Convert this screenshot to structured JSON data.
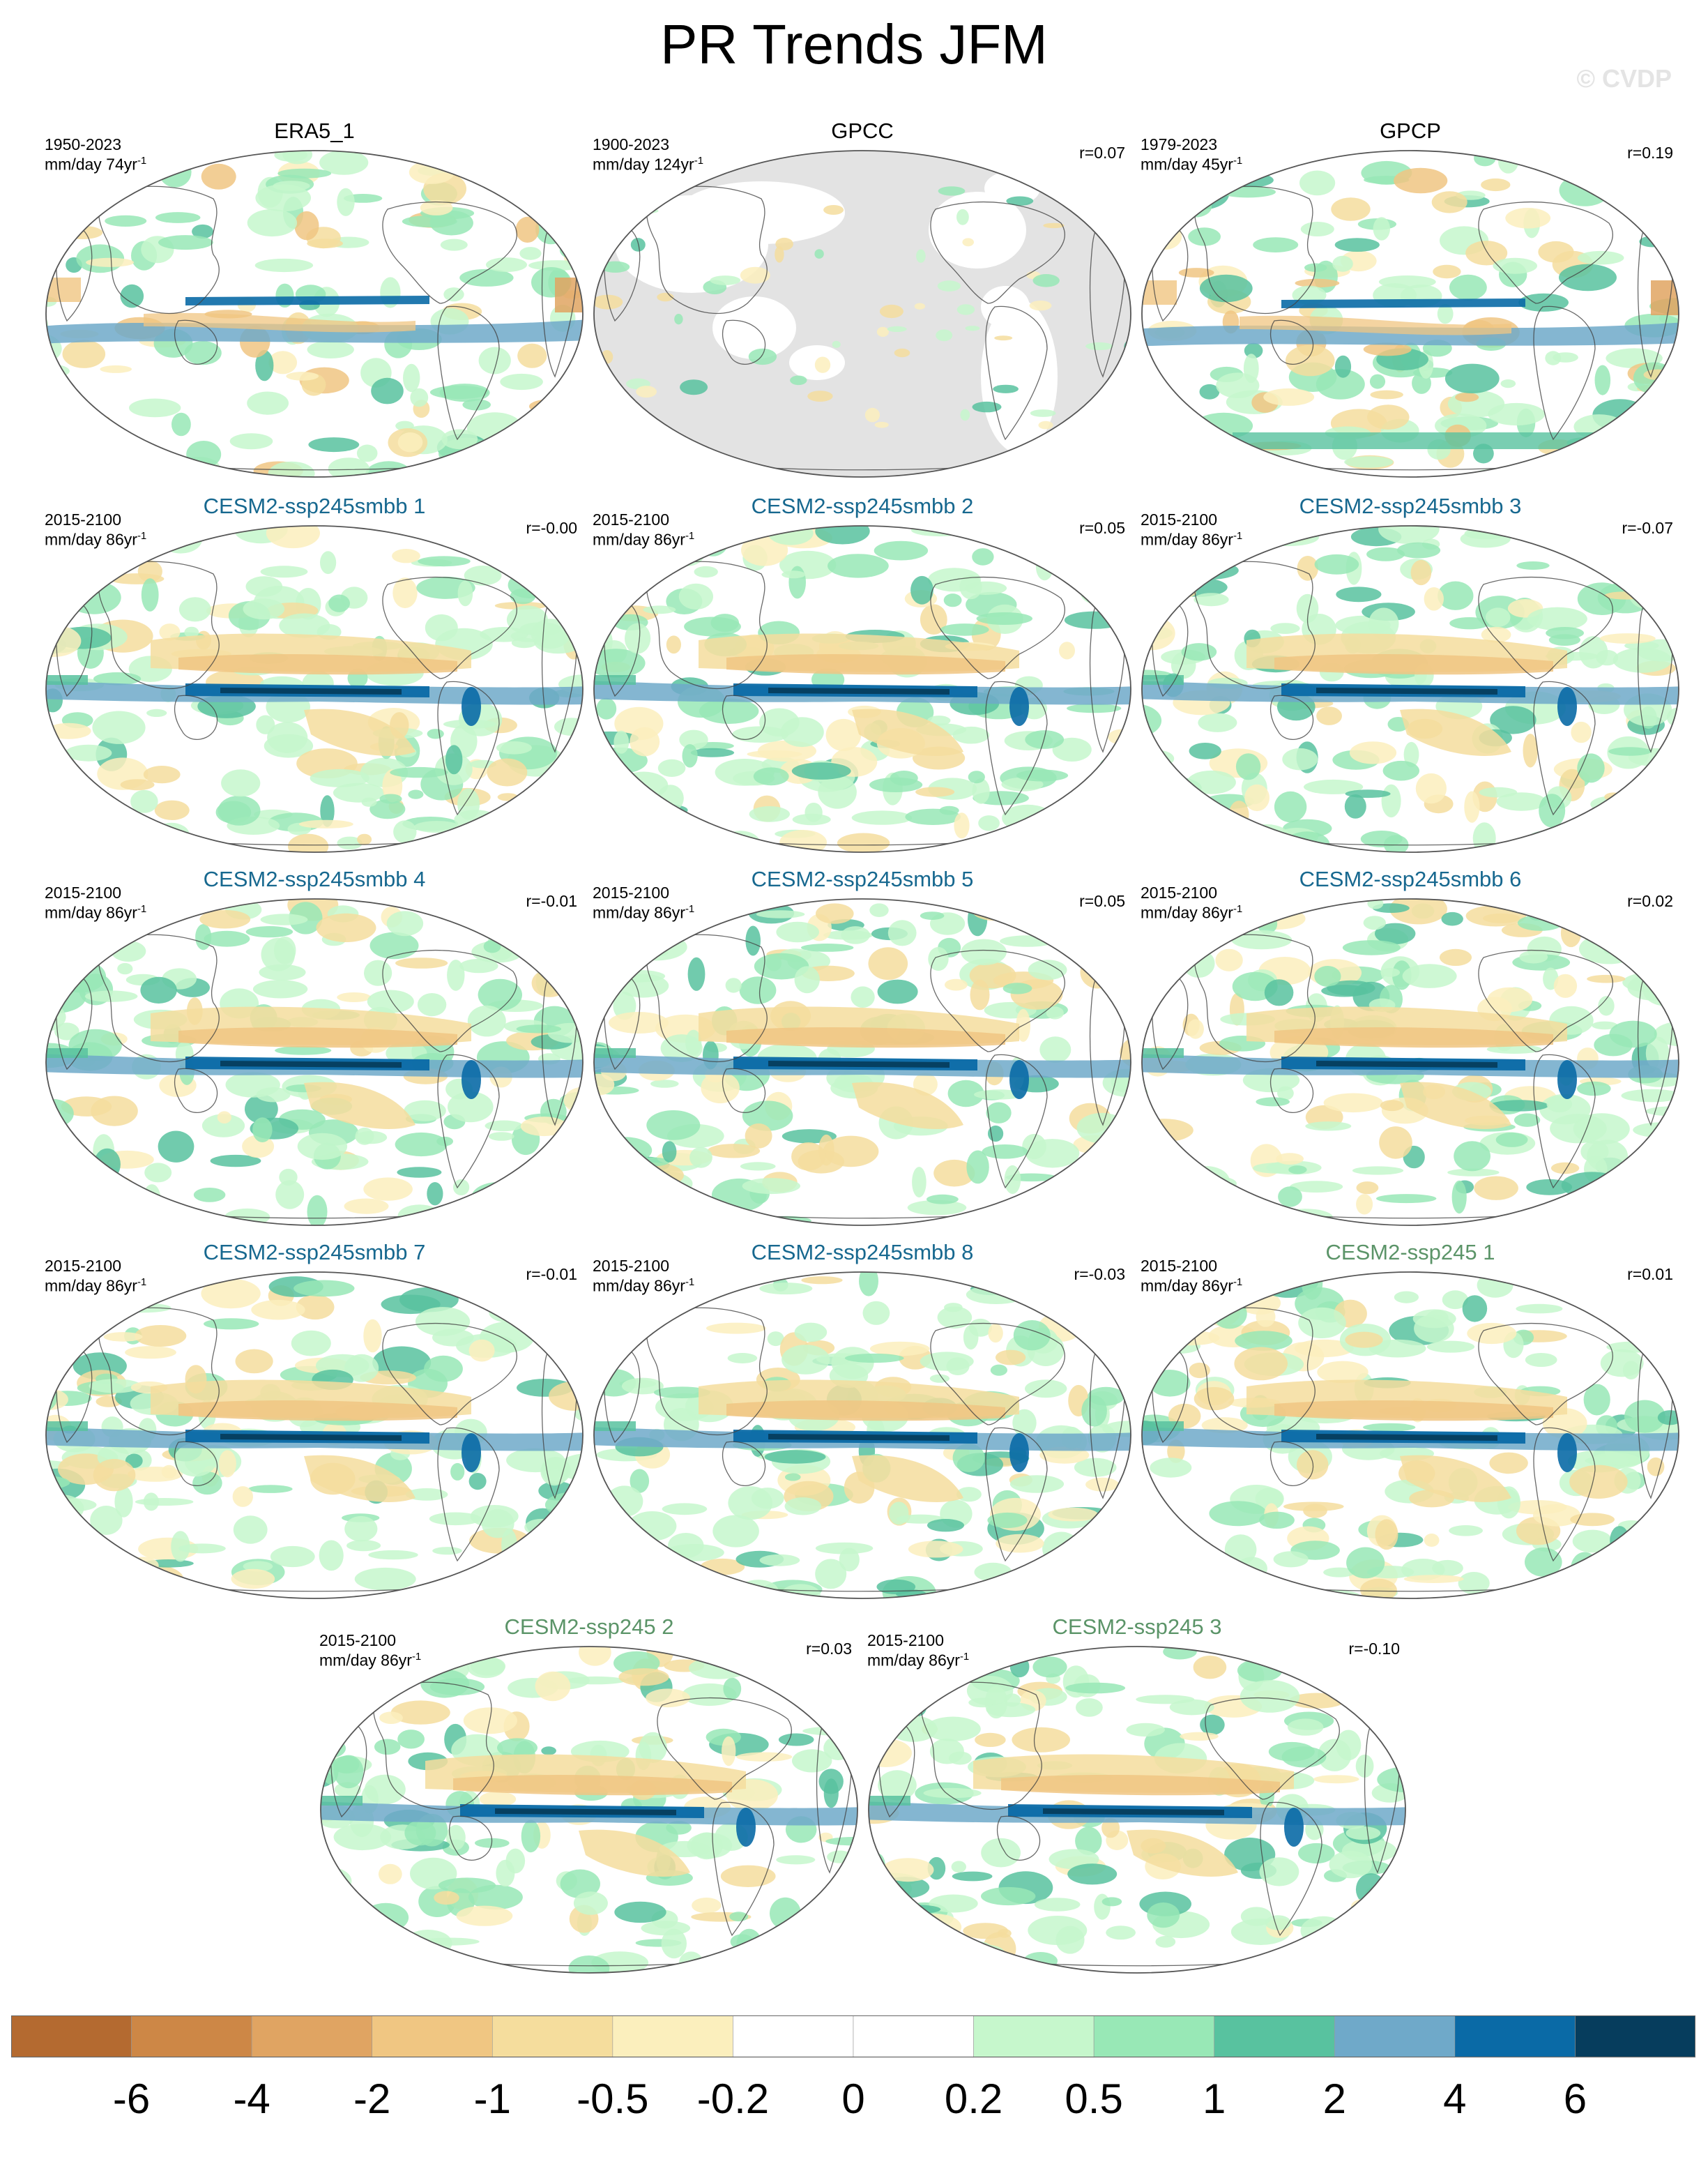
{
  "title": "PR Trends JFM",
  "watermark": "© CVDP",
  "colors": {
    "obs_title": "#000000",
    "smbb_title": "#17688f",
    "ssp_title": "#5b9468",
    "land_mask": "#e3e3e3"
  },
  "panels": [
    {
      "name": "ERA5_1",
      "period": "1950-2023",
      "units": "mm/day 74yr",
      "corr": "",
      "group": "obs",
      "style": "era5"
    },
    {
      "name": "GPCC",
      "period": "1900-2023",
      "units": "mm/day 124yr",
      "corr": "r=0.07",
      "group": "obs",
      "style": "gpcc"
    },
    {
      "name": "GPCP",
      "period": "1979-2023",
      "units": "mm/day 45yr",
      "corr": "r=0.19",
      "group": "obs",
      "style": "gpcp"
    },
    {
      "name": "CESM2-ssp245smbb 1",
      "period": "2015-2100",
      "units": "mm/day 86yr",
      "corr": "r=-0.00",
      "group": "smbb",
      "style": "model"
    },
    {
      "name": "CESM2-ssp245smbb 2",
      "period": "2015-2100",
      "units": "mm/day 86yr",
      "corr": "r=0.05",
      "group": "smbb",
      "style": "model"
    },
    {
      "name": "CESM2-ssp245smbb 3",
      "period": "2015-2100",
      "units": "mm/day 86yr",
      "corr": "r=-0.07",
      "group": "smbb",
      "style": "model"
    },
    {
      "name": "CESM2-ssp245smbb 4",
      "period": "2015-2100",
      "units": "mm/day 86yr",
      "corr": "r=-0.01",
      "group": "smbb",
      "style": "model"
    },
    {
      "name": "CESM2-ssp245smbb 5",
      "period": "2015-2100",
      "units": "mm/day 86yr",
      "corr": "r=0.05",
      "group": "smbb",
      "style": "model"
    },
    {
      "name": "CESM2-ssp245smbb 6",
      "period": "2015-2100",
      "units": "mm/day 86yr",
      "corr": "r=0.02",
      "group": "smbb",
      "style": "model"
    },
    {
      "name": "CESM2-ssp245smbb 7",
      "period": "2015-2100",
      "units": "mm/day 86yr",
      "corr": "r=-0.01",
      "group": "smbb",
      "style": "model"
    },
    {
      "name": "CESM2-ssp245smbb 8",
      "period": "2015-2100",
      "units": "mm/day 86yr",
      "corr": "r=-0.03",
      "group": "smbb",
      "style": "model"
    },
    {
      "name": "CESM2-ssp245 1",
      "period": "2015-2100",
      "units": "mm/day 86yr",
      "corr": "r=0.01",
      "group": "ssp",
      "style": "model"
    },
    {
      "name": "CESM2-ssp245 2",
      "period": "2015-2100",
      "units": "mm/day 86yr",
      "corr": "r=0.03",
      "group": "ssp",
      "style": "model"
    },
    {
      "name": "CESM2-ssp245 3",
      "period": "2015-2100",
      "units": "mm/day 86yr",
      "corr": "r=-0.10",
      "group": "ssp",
      "style": "model"
    }
  ],
  "colorbar": {
    "boxes": [
      "#b46a30",
      "#cd8746",
      "#e0a462",
      "#f0c682",
      "#f5dd9d",
      "#fbefbd",
      "#ffffff",
      "#ffffff",
      "#c6f7cc",
      "#98e8b6",
      "#58c29f",
      "#6fa9c9",
      "#0a6aa6",
      "#063d5d"
    ],
    "labels": [
      "-6",
      "-4",
      "-2",
      "-1",
      "-0.5",
      "-0.2",
      "0",
      "0.2",
      "0.5",
      "1",
      "2",
      "4",
      "6"
    ]
  }
}
